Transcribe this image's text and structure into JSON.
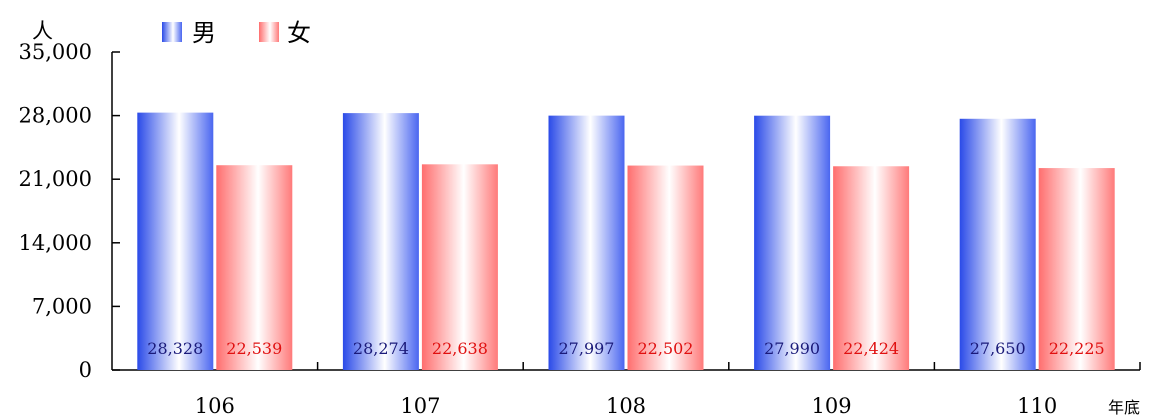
{
  "chart_data": {
    "type": "bar",
    "ylabel": "人",
    "xlabel": "年底",
    "ylim": [
      0,
      35000
    ],
    "yticks": [
      "0",
      "7,000",
      "14,000",
      "21,000",
      "28,000",
      "35,000"
    ],
    "ytick_values": [
      0,
      7000,
      14000,
      21000,
      28000,
      35000
    ],
    "categories": [
      "106",
      "107",
      "108",
      "109",
      "110"
    ],
    "series": [
      {
        "name": "男",
        "values": [
          28328,
          28274,
          27997,
          27990,
          27650
        ],
        "labels": [
          "28,328",
          "28,274",
          "27,997",
          "27,990",
          "27,650"
        ],
        "color": "#3355ee",
        "label_color": "#1a1a7a"
      },
      {
        "name": "女",
        "values": [
          22539,
          22638,
          22502,
          22424,
          22225
        ],
        "labels": [
          "22,539",
          "22,638",
          "22,502",
          "22,424",
          "22,225"
        ],
        "color": "#ff6b6b",
        "label_color": "#e01010"
      }
    ],
    "legend_position": "top-left",
    "grid": false
  }
}
